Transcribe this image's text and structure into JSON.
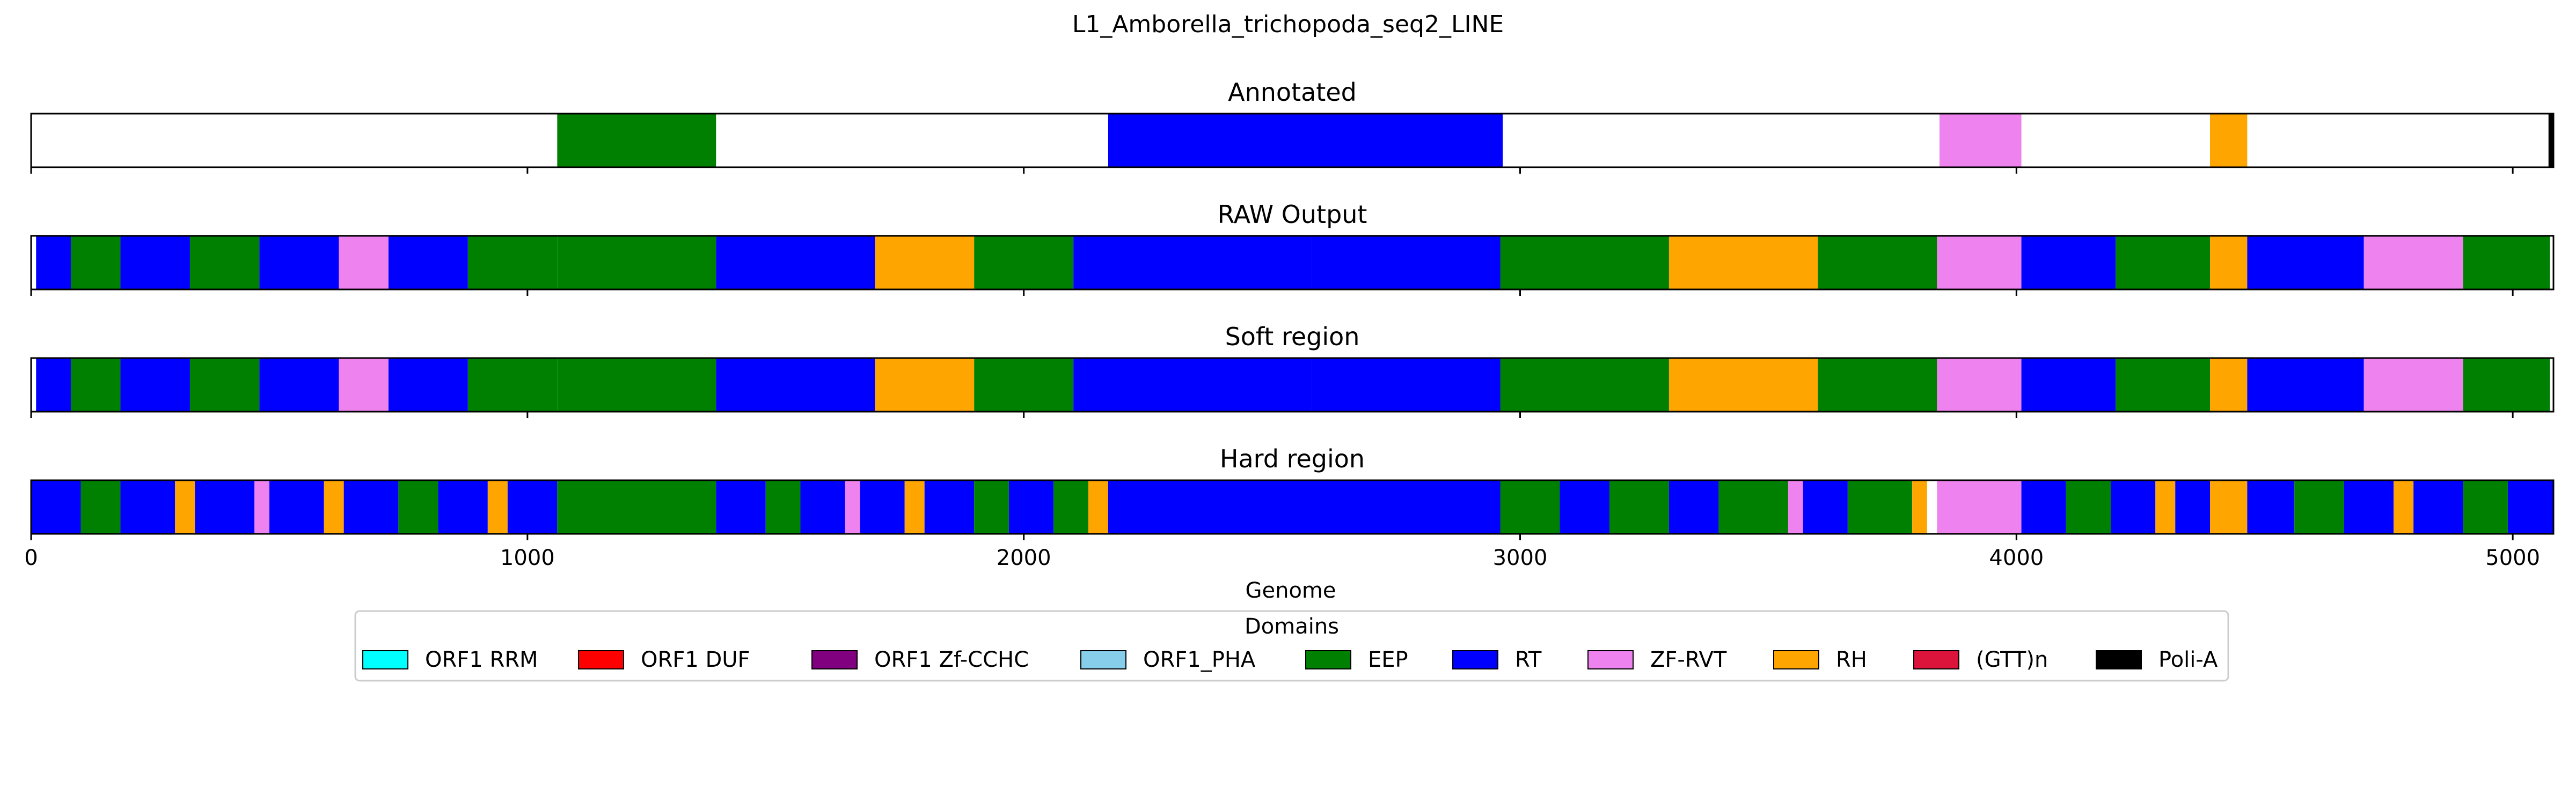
{
  "figure": {
    "title": "L1_Amborella_trichopoda_seq2_LINE"
  },
  "chart_data": {
    "type": "bar",
    "xlabel": "Genome",
    "xlim": [
      0,
      5082
    ],
    "xticks": [
      0,
      1000,
      2000,
      3000,
      4000,
      5000
    ],
    "grid": false,
    "legend": {
      "title": "Domains",
      "placement": "bottom-center",
      "columns": 10
    },
    "domains": [
      {
        "name": "ORF1 RRM",
        "color": "#00ffff"
      },
      {
        "name": "ORF1 DUF",
        "color": "#ff0000"
      },
      {
        "name": "ORF1 Zf-CCHC",
        "color": "#800080"
      },
      {
        "name": "ORF1_PHA",
        "color": "#87ceeb"
      },
      {
        "name": "EEP",
        "color": "#008000"
      },
      {
        "name": "RT",
        "color": "#0000ff"
      },
      {
        "name": "ZF-RVT",
        "color": "#ee82ee"
      },
      {
        "name": "RH",
        "color": "#ffa500"
      },
      {
        "name": "(GTT)n",
        "color": "#dc143c"
      },
      {
        "name": "Poli-A",
        "color": "#000000"
      }
    ],
    "panels": [
      {
        "title": "Annotated",
        "segments": [
          {
            "domain": "EEP",
            "start": 1060,
            "end": 1380
          },
          {
            "domain": "RT",
            "start": 2170,
            "end": 2965
          },
          {
            "domain": "ZF-RVT",
            "start": 3845,
            "end": 4010
          },
          {
            "domain": "RH",
            "start": 4390,
            "end": 4465
          },
          {
            "domain": "Poli-A",
            "start": 5072,
            "end": 5082
          }
        ]
      },
      {
        "title": "RAW Output",
        "segments": [
          {
            "domain": "RT",
            "start": 10,
            "end": 80
          },
          {
            "domain": "EEP",
            "start": 80,
            "end": 180
          },
          {
            "domain": "RT",
            "start": 180,
            "end": 320
          },
          {
            "domain": "EEP",
            "start": 320,
            "end": 460
          },
          {
            "domain": "RT",
            "start": 460,
            "end": 620
          },
          {
            "domain": "ZF-RVT",
            "start": 620,
            "end": 720
          },
          {
            "domain": "RT",
            "start": 720,
            "end": 880
          },
          {
            "domain": "EEP",
            "start": 880,
            "end": 1060
          },
          {
            "domain": "EEP",
            "start": 1060,
            "end": 1380
          },
          {
            "domain": "RT",
            "start": 1380,
            "end": 1700
          },
          {
            "domain": "RH",
            "start": 1700,
            "end": 1900
          },
          {
            "domain": "EEP",
            "start": 1900,
            "end": 2100
          },
          {
            "domain": "RT",
            "start": 2100,
            "end": 2580
          },
          {
            "domain": "RT",
            "start": 2580,
            "end": 2960
          },
          {
            "domain": "EEP",
            "start": 2960,
            "end": 3300
          },
          {
            "domain": "RH",
            "start": 3300,
            "end": 3600
          },
          {
            "domain": "EEP",
            "start": 3600,
            "end": 3840
          },
          {
            "domain": "ZF-RVT",
            "start": 3840,
            "end": 4010
          },
          {
            "domain": "RT",
            "start": 4010,
            "end": 4200
          },
          {
            "domain": "EEP",
            "start": 4200,
            "end": 4390
          },
          {
            "domain": "RH",
            "start": 4390,
            "end": 4465
          },
          {
            "domain": "RT",
            "start": 4465,
            "end": 4700
          },
          {
            "domain": "ZF-RVT",
            "start": 4700,
            "end": 4900
          },
          {
            "domain": "EEP",
            "start": 4900,
            "end": 5075
          }
        ]
      },
      {
        "title": "Soft region",
        "segments": [
          {
            "domain": "RT",
            "start": 10,
            "end": 80
          },
          {
            "domain": "EEP",
            "start": 80,
            "end": 180
          },
          {
            "domain": "RT",
            "start": 180,
            "end": 320
          },
          {
            "domain": "EEP",
            "start": 320,
            "end": 460
          },
          {
            "domain": "RT",
            "start": 460,
            "end": 620
          },
          {
            "domain": "ZF-RVT",
            "start": 620,
            "end": 720
          },
          {
            "domain": "RT",
            "start": 720,
            "end": 880
          },
          {
            "domain": "EEP",
            "start": 880,
            "end": 1060
          },
          {
            "domain": "EEP",
            "start": 1060,
            "end": 1380
          },
          {
            "domain": "RT",
            "start": 1380,
            "end": 1700
          },
          {
            "domain": "RH",
            "start": 1700,
            "end": 1900
          },
          {
            "domain": "EEP",
            "start": 1900,
            "end": 2100
          },
          {
            "domain": "RT",
            "start": 2100,
            "end": 2580
          },
          {
            "domain": "RT",
            "start": 2580,
            "end": 2960
          },
          {
            "domain": "EEP",
            "start": 2960,
            "end": 3300
          },
          {
            "domain": "RH",
            "start": 3300,
            "end": 3600
          },
          {
            "domain": "EEP",
            "start": 3600,
            "end": 3840
          },
          {
            "domain": "ZF-RVT",
            "start": 3840,
            "end": 4010
          },
          {
            "domain": "RT",
            "start": 4010,
            "end": 4200
          },
          {
            "domain": "EEP",
            "start": 4200,
            "end": 4390
          },
          {
            "domain": "RH",
            "start": 4390,
            "end": 4465
          },
          {
            "domain": "RT",
            "start": 4465,
            "end": 4700
          },
          {
            "domain": "ZF-RVT",
            "start": 4700,
            "end": 4900
          },
          {
            "domain": "EEP",
            "start": 4900,
            "end": 5075
          }
        ]
      },
      {
        "title": "Hard region",
        "segments": [
          {
            "domain": "RT",
            "start": 0,
            "end": 100
          },
          {
            "domain": "EEP",
            "start": 100,
            "end": 180
          },
          {
            "domain": "RT",
            "start": 180,
            "end": 290
          },
          {
            "domain": "RH",
            "start": 290,
            "end": 330
          },
          {
            "domain": "RT",
            "start": 330,
            "end": 450
          },
          {
            "domain": "ZF-RVT",
            "start": 450,
            "end": 480
          },
          {
            "domain": "RT",
            "start": 480,
            "end": 590
          },
          {
            "domain": "RH",
            "start": 590,
            "end": 630
          },
          {
            "domain": "RT",
            "start": 630,
            "end": 740
          },
          {
            "domain": "EEP",
            "start": 740,
            "end": 820
          },
          {
            "domain": "RT",
            "start": 820,
            "end": 920
          },
          {
            "domain": "RH",
            "start": 920,
            "end": 960
          },
          {
            "domain": "RT",
            "start": 960,
            "end": 1060
          },
          {
            "domain": "EEP",
            "start": 1060,
            "end": 1380
          },
          {
            "domain": "RT",
            "start": 1380,
            "end": 1480
          },
          {
            "domain": "EEP",
            "start": 1480,
            "end": 1550
          },
          {
            "domain": "RT",
            "start": 1550,
            "end": 1640
          },
          {
            "domain": "ZF-RVT",
            "start": 1640,
            "end": 1670
          },
          {
            "domain": "RT",
            "start": 1670,
            "end": 1760
          },
          {
            "domain": "RH",
            "start": 1760,
            "end": 1800
          },
          {
            "domain": "RT",
            "start": 1800,
            "end": 1900
          },
          {
            "domain": "EEP",
            "start": 1900,
            "end": 1970
          },
          {
            "domain": "RT",
            "start": 1970,
            "end": 2060
          },
          {
            "domain": "EEP",
            "start": 2060,
            "end": 2130
          },
          {
            "domain": "RH",
            "start": 2130,
            "end": 2170
          },
          {
            "domain": "RT",
            "start": 2170,
            "end": 2960
          },
          {
            "domain": "EEP",
            "start": 2960,
            "end": 3080
          },
          {
            "domain": "RT",
            "start": 3080,
            "end": 3180
          },
          {
            "domain": "EEP",
            "start": 3180,
            "end": 3300
          },
          {
            "domain": "RT",
            "start": 3300,
            "end": 3400
          },
          {
            "domain": "EEP",
            "start": 3400,
            "end": 3540
          },
          {
            "domain": "ZF-RVT",
            "start": 3540,
            "end": 3570
          },
          {
            "domain": "RT",
            "start": 3570,
            "end": 3660
          },
          {
            "domain": "EEP",
            "start": 3660,
            "end": 3790
          },
          {
            "domain": "RH",
            "start": 3790,
            "end": 3820
          },
          {
            "domain": "ZF-RVT",
            "start": 3840,
            "end": 4010
          },
          {
            "domain": "RT",
            "start": 4010,
            "end": 4100
          },
          {
            "domain": "EEP",
            "start": 4100,
            "end": 4190
          },
          {
            "domain": "RT",
            "start": 4190,
            "end": 4280
          },
          {
            "domain": "RH",
            "start": 4280,
            "end": 4320
          },
          {
            "domain": "RT",
            "start": 4320,
            "end": 4390
          },
          {
            "domain": "RH",
            "start": 4390,
            "end": 4465
          },
          {
            "domain": "RT",
            "start": 4465,
            "end": 4560
          },
          {
            "domain": "EEP",
            "start": 4560,
            "end": 4660
          },
          {
            "domain": "RT",
            "start": 4660,
            "end": 4760
          },
          {
            "domain": "RH",
            "start": 4760,
            "end": 4800
          },
          {
            "domain": "RT",
            "start": 4800,
            "end": 4900
          },
          {
            "domain": "EEP",
            "start": 4900,
            "end": 4990
          },
          {
            "domain": "RT",
            "start": 4990,
            "end": 5082
          }
        ]
      }
    ]
  }
}
